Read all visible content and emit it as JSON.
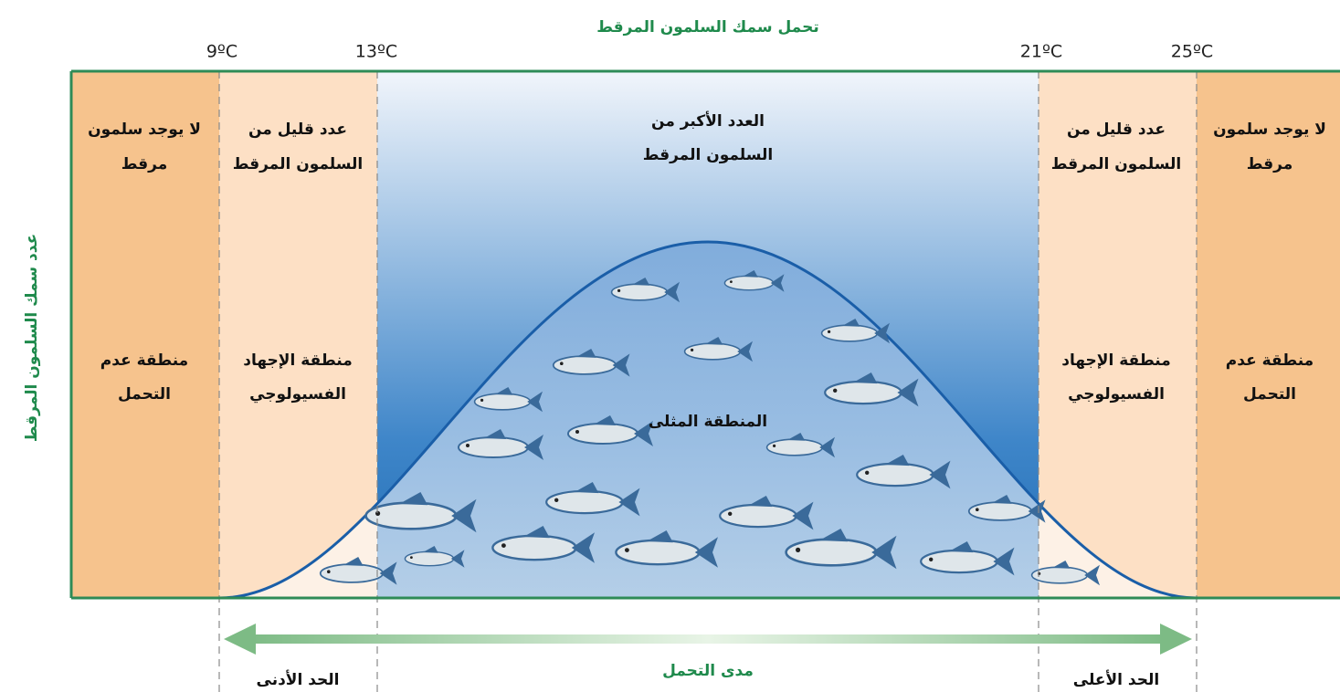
{
  "title": "تحمل سمك السلمون المرقط",
  "y_axis_label": "عدد سمك السلمون المرقط",
  "temperatures": [
    "9ºC",
    "13ºC",
    "21ºC",
    "25ºC"
  ],
  "zones": [
    {
      "top": [
        "لا يوجد سلمون",
        "مرقط"
      ],
      "middle": [
        "منطقة عدم",
        "التحمل"
      ]
    },
    {
      "top": [
        "عدد قليل من",
        "السلمون المرقط"
      ],
      "middle": [
        "منطقة الإجهاد",
        "الفسيولوجي"
      ]
    },
    {
      "top": [
        "العدد الأكبر من",
        "السلمون المرقط"
      ],
      "middle": [
        "المنطقة المثلى"
      ]
    },
    {
      "top": [
        "عدد قليل من",
        "السلمون المرقط"
      ],
      "middle": [
        "منطقة الإجهاد",
        "الفسيولوجي"
      ]
    },
    {
      "top": [
        "لا يوجد سلمون",
        "مرقط"
      ],
      "middle": [
        "منطقة عدم",
        "التحمل"
      ]
    }
  ],
  "range_label": "مدى التحمل",
  "lower_limit": "الحد الأدنى",
  "upper_limit": "الحد الأعلى"
}
